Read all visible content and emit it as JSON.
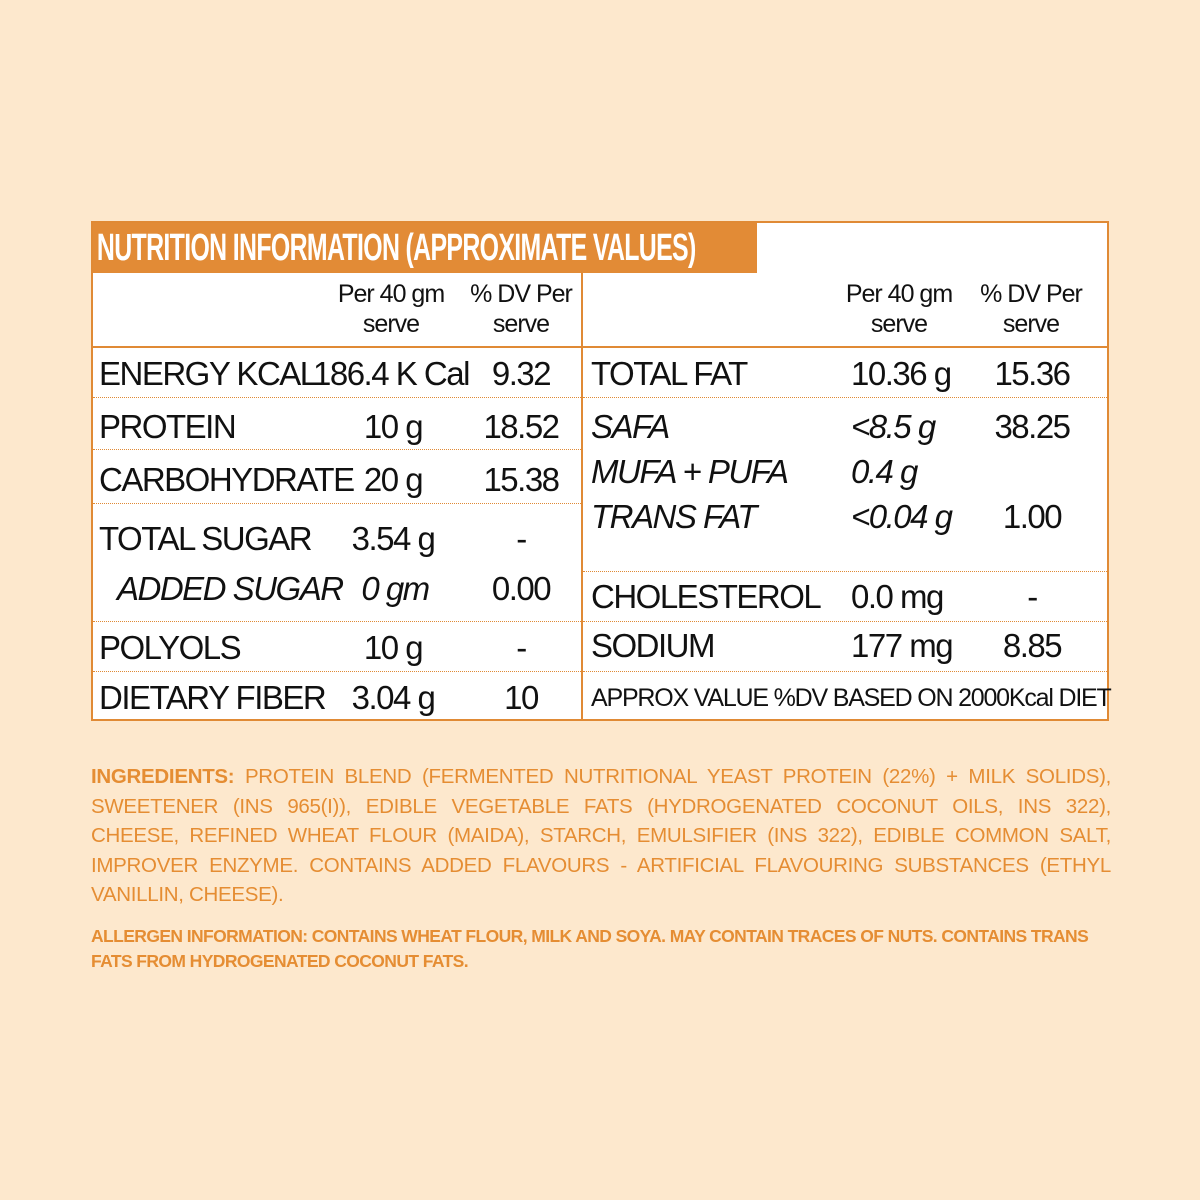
{
  "title": "NUTRITION INFORMATION (APPROXIMATE VALUES)",
  "columns": {
    "per_serve": [
      "Per 40 gm",
      "serve"
    ],
    "dv_per_serve": [
      "% DV Per",
      "serve"
    ]
  },
  "left_rows": [
    {
      "name": "ENERGY KCAL",
      "value": "186.4 K Cal",
      "dv": "9.32"
    },
    {
      "name": "PROTEIN",
      "value": "10 g",
      "dv": "18.52"
    },
    {
      "name": "CARBOHYDRATE",
      "value": "20 g",
      "dv": "15.38"
    },
    {
      "name": "TOTAL SUGAR",
      "value": "3.54 g",
      "dv": "-"
    },
    {
      "name": "ADDED SUGAR",
      "value": "0 gm",
      "dv": "0.00"
    },
    {
      "name": "POLYOLS",
      "value": "10 g",
      "dv": "-"
    },
    {
      "name": "DIETARY FIBER",
      "value": "3.04 g",
      "dv": "10"
    }
  ],
  "right_rows": [
    {
      "name": "TOTAL FAT",
      "value": "10.36 g",
      "dv": "15.36"
    },
    {
      "name": "SAFA",
      "value": "<8.5 g",
      "dv": "38.25"
    },
    {
      "name": "MUFA + PUFA",
      "value": "0.4 g",
      "dv": ""
    },
    {
      "name": "TRANS FAT",
      "value": "<0.04 g",
      "dv": "1.00"
    },
    {
      "name": "CHOLESTEROL",
      "value": "0.0 mg",
      "dv": "-"
    },
    {
      "name": "SODIUM",
      "value": "177 mg",
      "dv": "8.85"
    }
  ],
  "footnote": "APPROX VALUE %DV BASED ON 2000Kcal DIET",
  "ingredients": {
    "label": "INGREDIENTS:",
    "text": "PROTEIN BLEND (FERMENTED NUTRITIONAL YEAST PROTEIN (22%) + MILK SOLIDS), SWEETENER (INS 965(I)), EDIBLE VEGETABLE FATS (HYDROGENATED COCONUT OILS, INS 322), CHEESE, REFINED WHEAT FLOUR (MAIDA), STARCH, EMULSIFIER (INS 322), EDIBLE COMMON SALT, IMPROVER ENZYME. CONTAINS ADDED FLAVOURS - ARTIFICIAL FLAVOURING SUBSTANCES (ETHYL VANILLIN, CHEESE)."
  },
  "allergen": "ALLERGEN INFORMATION: CONTAINS WHEAT FLOUR, MILK AND SOYA. MAY CONTAIN TRACES OF NUTS. CONTAINS TRANS FATS FROM HYDROGENATED COCONUT FATS.",
  "colors": {
    "background": "#fde8cd",
    "accent": "#e28b36",
    "text_orange": "#e58d33"
  }
}
